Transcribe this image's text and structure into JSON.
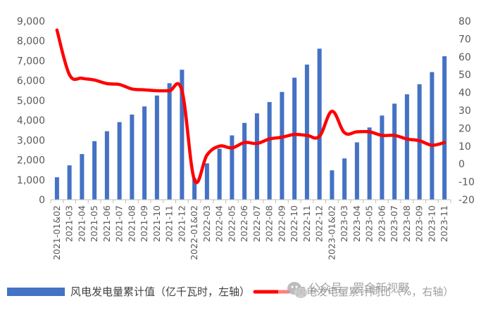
{
  "chart_data": {
    "type": "bar+line",
    "categories": [
      "2021-01&02",
      "2021-03",
      "2021-04",
      "2021-05",
      "2021-06",
      "2021-07",
      "2021-08",
      "2021-09",
      "2021-10",
      "2021-11",
      "2021-12",
      "2022-01&02",
      "2022-03",
      "2022-04",
      "2022-05",
      "2022-06",
      "2022-07",
      "2022-08",
      "2022-09",
      "2022-10",
      "2022-11",
      "2022-12",
      "2023-01&02",
      "2023-03",
      "2023-04",
      "2023-05",
      "2023-06",
      "2023-07",
      "2023-08",
      "2023-09",
      "2023-10",
      "2023-11"
    ],
    "series": [
      {
        "name": "风电发电量累计值（亿千瓦时，左轴）",
        "type": "bar",
        "axis": "left",
        "color": "#4472C4",
        "values": [
          1130,
          1730,
          2300,
          2950,
          3450,
          3910,
          4290,
          4700,
          5250,
          5870,
          6550,
          1080,
          1830,
          2570,
          3240,
          3870,
          4350,
          4920,
          5430,
          6150,
          6810,
          7610,
          1480,
          2080,
          2890,
          3640,
          4240,
          4840,
          5310,
          5820,
          6430,
          7230
        ]
      },
      {
        "name": "风电发电量累计同比（%，右轴）",
        "type": "line",
        "axis": "right",
        "color": "#FF0000",
        "values": [
          75,
          50,
          48,
          47,
          45,
          44.5,
          42,
          41.5,
          41,
          41,
          41,
          -9,
          5,
          10,
          9,
          12,
          11.5,
          14,
          15,
          16.5,
          16,
          15.5,
          29.5,
          17.5,
          18,
          18,
          16,
          16,
          14,
          13,
          10.5,
          12
        ]
      }
    ],
    "y_left": {
      "min": 0,
      "max": 9000,
      "ticks": [
        "0",
        "1,000",
        "2,000",
        "3,000",
        "4,000",
        "5,000",
        "6,000",
        "7,000",
        "8,000",
        "9,000"
      ]
    },
    "y_right": {
      "min": -20,
      "max": 80,
      "ticks": [
        "-20",
        "-10",
        "0",
        "10",
        "20",
        "30",
        "40",
        "50",
        "60",
        "70",
        "80"
      ]
    },
    "grid": false,
    "legend_position": "bottom"
  },
  "watermark": {
    "text": "公众号 · 罡金新视野",
    "icon": "wechat-icon"
  }
}
